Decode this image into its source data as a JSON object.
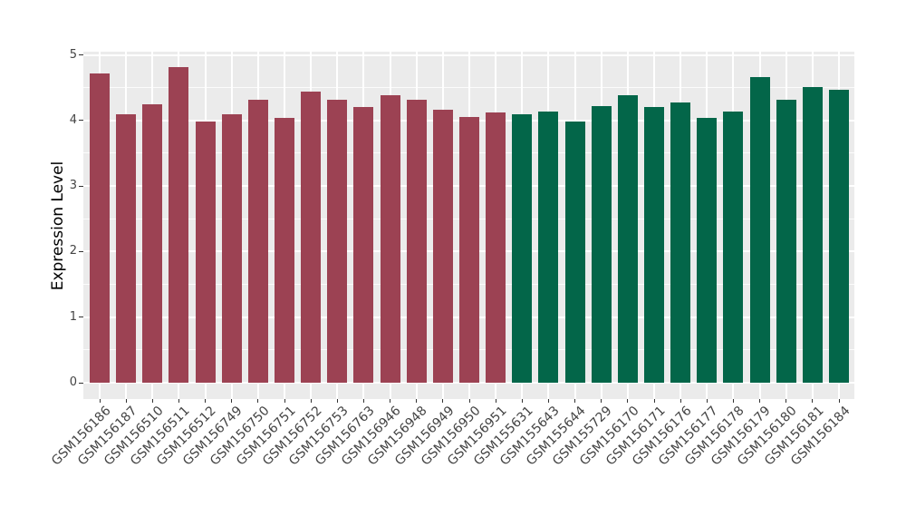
{
  "figure": {
    "background": "#FFFFFF",
    "panel_background": "#EBEBEB",
    "grid_color": "#FFFFFF",
    "tick_color": "#333333",
    "axis_text_color": "#444444",
    "axis_title_color": "#000000"
  },
  "chart_data": {
    "type": "bar",
    "title": "",
    "xlabel": "",
    "ylabel": "Expression Level",
    "ylim": [
      0,
      5
    ],
    "yticks": [
      0,
      1,
      2,
      3,
      4,
      5
    ],
    "yticks_minor": [
      0.5,
      1.5,
      2.5,
      3.5,
      4.5
    ],
    "grid": true,
    "legend": false,
    "categories": [
      "GSM156186",
      "GSM156187",
      "GSM156510",
      "GSM156511",
      "GSM156512",
      "GSM156749",
      "GSM156750",
      "GSM156751",
      "GSM156752",
      "GSM156753",
      "GSM156763",
      "GSM156946",
      "GSM156948",
      "GSM156949",
      "GSM156950",
      "GSM156951",
      "GSM155631",
      "GSM155643",
      "GSM155644",
      "GSM155729",
      "GSM156170",
      "GSM156171",
      "GSM156176",
      "GSM156177",
      "GSM156178",
      "GSM156179",
      "GSM156180",
      "GSM156181",
      "GSM156184"
    ],
    "values": [
      4.72,
      4.1,
      4.25,
      4.81,
      3.99,
      4.1,
      4.31,
      4.04,
      4.44,
      4.32,
      4.2,
      4.38,
      4.32,
      4.17,
      4.05,
      4.12,
      4.09,
      4.14,
      3.98,
      4.22,
      4.38,
      4.21,
      4.27,
      4.04,
      4.14,
      4.66,
      4.32,
      4.51,
      4.47
    ],
    "bar_colors": [
      "#9C4253",
      "#9C4253",
      "#9C4253",
      "#9C4253",
      "#9C4253",
      "#9C4253",
      "#9C4253",
      "#9C4253",
      "#9C4253",
      "#9C4253",
      "#9C4253",
      "#9C4253",
      "#9C4253",
      "#9C4253",
      "#9C4253",
      "#9C4253",
      "#036649",
      "#036649",
      "#036649",
      "#036649",
      "#036649",
      "#036649",
      "#036649",
      "#036649",
      "#036649",
      "#036649",
      "#036649",
      "#036649",
      "#036649"
    ],
    "color_groups": {
      "maroon": "#9C4253",
      "green": "#036649"
    }
  }
}
